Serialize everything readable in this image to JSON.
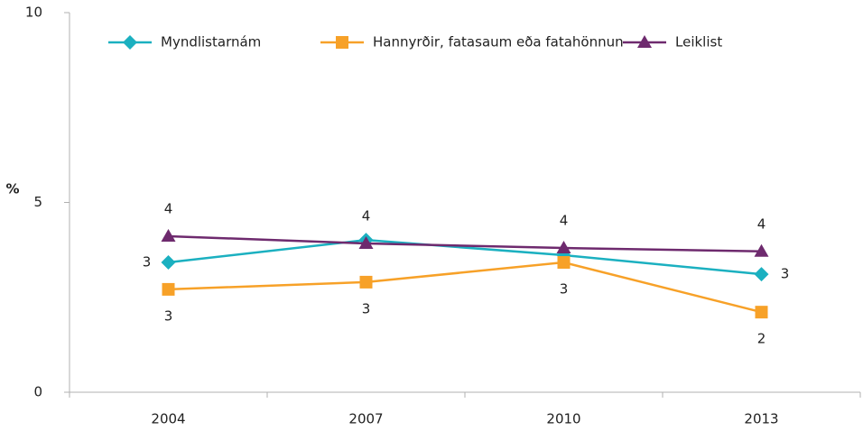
{
  "chart_data": {
    "type": "line",
    "y_label": "%",
    "categories": [
      "2004",
      "2007",
      "2010",
      "2013"
    ],
    "series": [
      {
        "name": "Myndlistarnám",
        "color": "#1bb0c0",
        "marker": "diamond",
        "values": [
          3.42,
          4.01,
          3.61,
          3.11
        ],
        "value_labels": [
          "3",
          null,
          null,
          "3"
        ]
      },
      {
        "name": "Hannyrðir, fatasaum eða fatahönnun",
        "color": "#f7a128",
        "marker": "square",
        "values": [
          2.71,
          2.9,
          3.42,
          2.11
        ],
        "value_labels": [
          "3",
          "3",
          "3",
          "2"
        ]
      },
      {
        "name": "Leiklist",
        "color": "#6e2a6e",
        "marker": "triangle",
        "values": [
          4.11,
          3.92,
          3.8,
          3.71
        ],
        "value_labels": [
          "4",
          "4",
          "4",
          "4"
        ]
      }
    ],
    "ylim": [
      0,
      10
    ],
    "yticks": [
      0,
      5,
      10
    ],
    "legend": "top"
  }
}
